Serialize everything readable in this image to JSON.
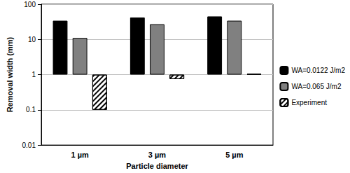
{
  "chart_data": {
    "type": "bar",
    "x_label": "Particle diameter",
    "y_label": "Removal width (mm)",
    "categories": [
      "1 µm",
      "3 µm",
      "5 µm"
    ],
    "series": [
      {
        "name": "WA=0.0122 J/m2",
        "color": "#000000",
        "values": [
          34,
          42,
          45
        ]
      },
      {
        "name": "WA=0.065 J/m2",
        "color": "#808080",
        "values": [
          11,
          27,
          34
        ]
      },
      {
        "name": "Experiment",
        "color": "#ffffff",
        "values": [
          0.1,
          0.75,
          1.05
        ]
      }
    ],
    "log": "y",
    "ylim": [
      0.01,
      100
    ],
    "yticks": [
      0.01,
      0.1,
      1,
      10,
      100
    ],
    "grid": true,
    "legend": "right"
  }
}
